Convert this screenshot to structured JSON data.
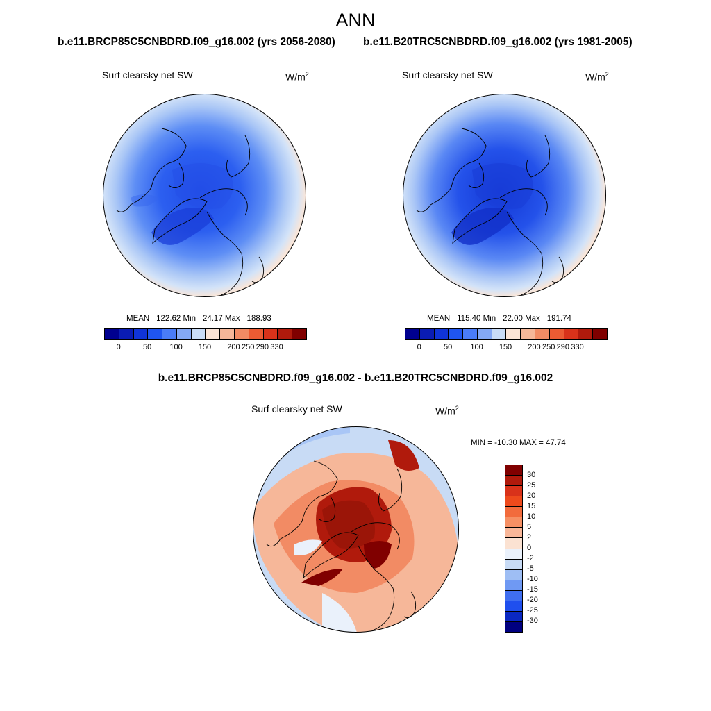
{
  "season": "ANN",
  "case_left_title": "b.e11.BRCP85C5CNBDRD.f09_g16.002 (yrs 2056-2080)",
  "case_right_title": "b.e11.B20TRC5CNBDRD.f09_g16.002 (yrs 1981-2005)",
  "diff_title": "b.e11.BRCP85C5CNBDRD.f09_g16.002 - b.e11.B20TRC5CNBDRD.f09_g16.002",
  "variable": "Surf clearsky net SW",
  "units_base": "W/m",
  "units_exp": "2",
  "panels": {
    "left": {
      "stats": "MEAN= 122.62  Min=  24.17  Max= 188.93",
      "mean": 122.62,
      "min": 24.17,
      "max": 188.93
    },
    "right": {
      "stats": "MEAN= 115.40  Min=  22.00  Max= 191.74",
      "mean": 115.4,
      "min": 22.0,
      "max": 191.74
    },
    "diff": {
      "stats": "MIN = -10.30 MAX =  47.74",
      "min": -10.3,
      "max": 47.74
    }
  },
  "colorbar_abs": {
    "colors": [
      "#00008f",
      "#0a1cb4",
      "#1034d8",
      "#1f55f0",
      "#4a7cf7",
      "#84a8f5",
      "#c9dcf7",
      "#fbe4d6",
      "#f6b799",
      "#f28b64",
      "#ec5b33",
      "#d9321a",
      "#b01a0c",
      "#800000"
    ],
    "tick_labels": [
      "0",
      "50",
      "100",
      "150",
      "200",
      "250",
      "290",
      "330"
    ]
  },
  "colorbar_diff": {
    "colors": [
      "#800000",
      "#b01a0c",
      "#d9321a",
      "#ee4a1c",
      "#f26b3c",
      "#f69064",
      "#f9b799",
      "#fbe2d2",
      "#eaf1fb",
      "#c8dbf5",
      "#9ebef4",
      "#6f99f3",
      "#3f6ef0",
      "#1f4fee",
      "#0a28c2",
      "#000080"
    ],
    "tick_labels": [
      "30",
      "25",
      "20",
      "15",
      "10",
      "5",
      "2",
      "0",
      "-2",
      "-5",
      "-10",
      "-15",
      "-20",
      "-25",
      "-30"
    ]
  }
}
